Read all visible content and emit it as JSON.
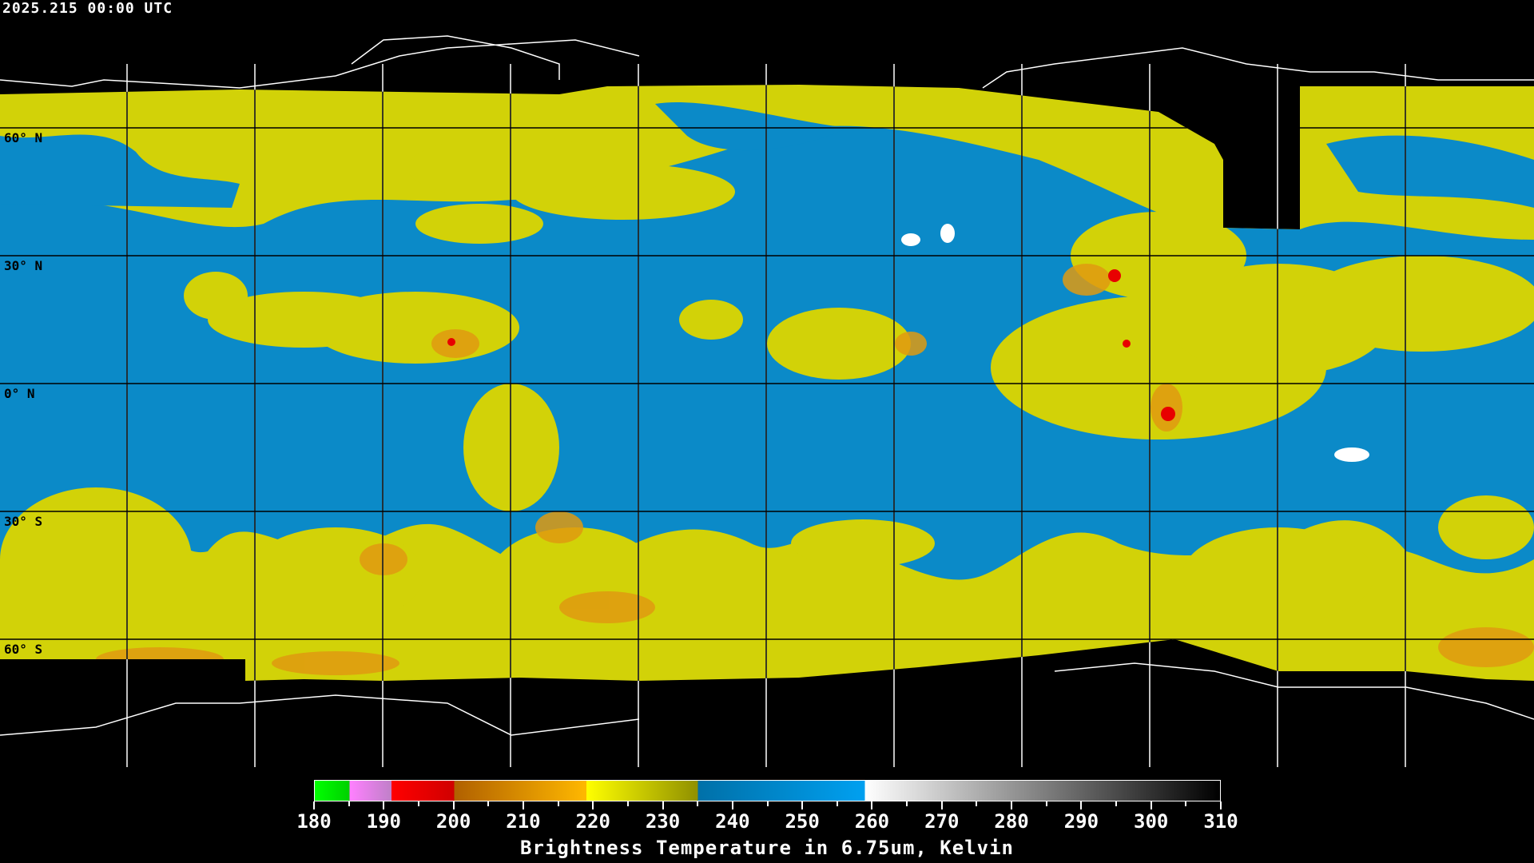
{
  "header": {
    "timestamp": "2025.215 00:00 UTC"
  },
  "map": {
    "projection": "equirectangular",
    "grid_spacing_degrees": 30,
    "lat_labels": [
      "60° N",
      "30° N",
      "0° N",
      "30° S",
      "60° S"
    ],
    "colors": {
      "background": "#000000",
      "cloud_yellow": "#d2d208",
      "clear_blue": "#0b8ac8",
      "deep_orange": "#e09a10",
      "convective_red": "#e80000",
      "hot_white": "#ffffff"
    }
  },
  "colorbar": {
    "title": "Brightness Temperature in 6.75um, Kelvin",
    "range": [
      180,
      310
    ],
    "tick_labels": [
      "180",
      "190",
      "200",
      "210",
      "220",
      "230",
      "240",
      "250",
      "260",
      "270",
      "280",
      "290",
      "300",
      "310"
    ],
    "segments": [
      {
        "from": 180,
        "to": 185,
        "start": "#00ff00",
        "end": "#00d000"
      },
      {
        "from": 185,
        "to": 191,
        "start": "#ff80ff",
        "end": "#c080c8"
      },
      {
        "from": 191,
        "to": 200,
        "start": "#ff0000",
        "end": "#d00000"
      },
      {
        "from": 200,
        "to": 219,
        "start": "#b06000",
        "end": "#ffb800"
      },
      {
        "from": 219,
        "to": 235,
        "start": "#ffff00",
        "end": "#909000"
      },
      {
        "from": 235,
        "to": 259,
        "start": "#0070a8",
        "end": "#00a0f0"
      },
      {
        "from": 259,
        "to": 310,
        "start": "#ffffff",
        "end": "#000000"
      }
    ]
  }
}
